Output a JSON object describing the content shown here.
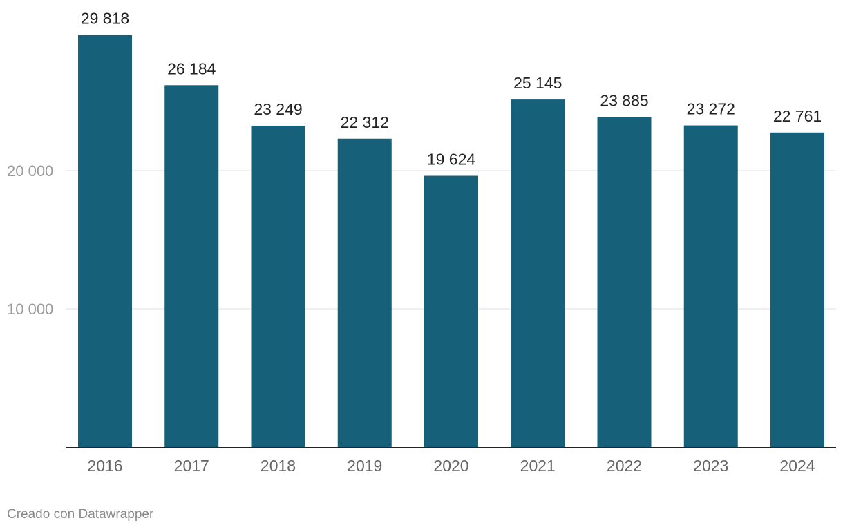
{
  "chart_data": {
    "type": "bar",
    "title": "",
    "xlabel": "",
    "ylabel": "",
    "categories": [
      "2016",
      "2017",
      "2018",
      "2019",
      "2020",
      "2021",
      "2022",
      "2023",
      "2024"
    ],
    "values": [
      29818,
      26184,
      23249,
      22312,
      19624,
      25145,
      23885,
      23272,
      22761
    ],
    "value_labels": [
      "29 818",
      "26 184",
      "23 249",
      "22 312",
      "19 624",
      "25 145",
      "23 885",
      "23 272",
      "22 761"
    ],
    "y_ticks": [
      {
        "value": 10000,
        "label": "10 000"
      },
      {
        "value": 20000,
        "label": "20 000"
      }
    ],
    "ylim": [
      0,
      30000
    ],
    "grid": true,
    "legend": "none",
    "bar_color": "#16607a"
  },
  "footer": {
    "credit": "Creado con Datawrapper"
  }
}
